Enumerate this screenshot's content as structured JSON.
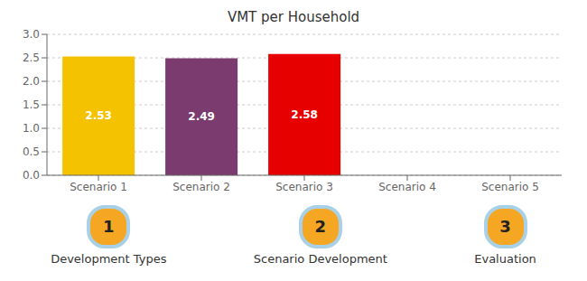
{
  "chart_data": {
    "type": "bar",
    "title": "VMT per Household",
    "categories": [
      "Scenario 1",
      "Scenario 2",
      "Scenario 3",
      "Scenario 4",
      "Scenario 5"
    ],
    "values": [
      2.53,
      2.49,
      2.58,
      0.0,
      0.0
    ],
    "value_labels": [
      "2.53",
      "2.49",
      "2.58",
      null,
      null
    ],
    "data_labels": true,
    "colors": [
      "#F5C200",
      "#7B3B6E",
      "#E60000",
      "#C0C0C0",
      "#C0C0C0"
    ],
    "ylim": [
      0,
      3.0
    ],
    "yticks": [
      {
        "value": 0.0,
        "label": "0.0"
      },
      0.5,
      {
        "value": 1.0,
        "label": "1.0"
      },
      1.5,
      {
        "value": 2.0,
        "label": "2.0"
      },
      2.5,
      {
        "value": 3.0,
        "label": "3.0"
      }
    ],
    "grid": true,
    "annotations": [
      "1",
      "Development Types",
      "2",
      "Scenario Development",
      "3",
      "Evaluation"
    ]
  }
}
